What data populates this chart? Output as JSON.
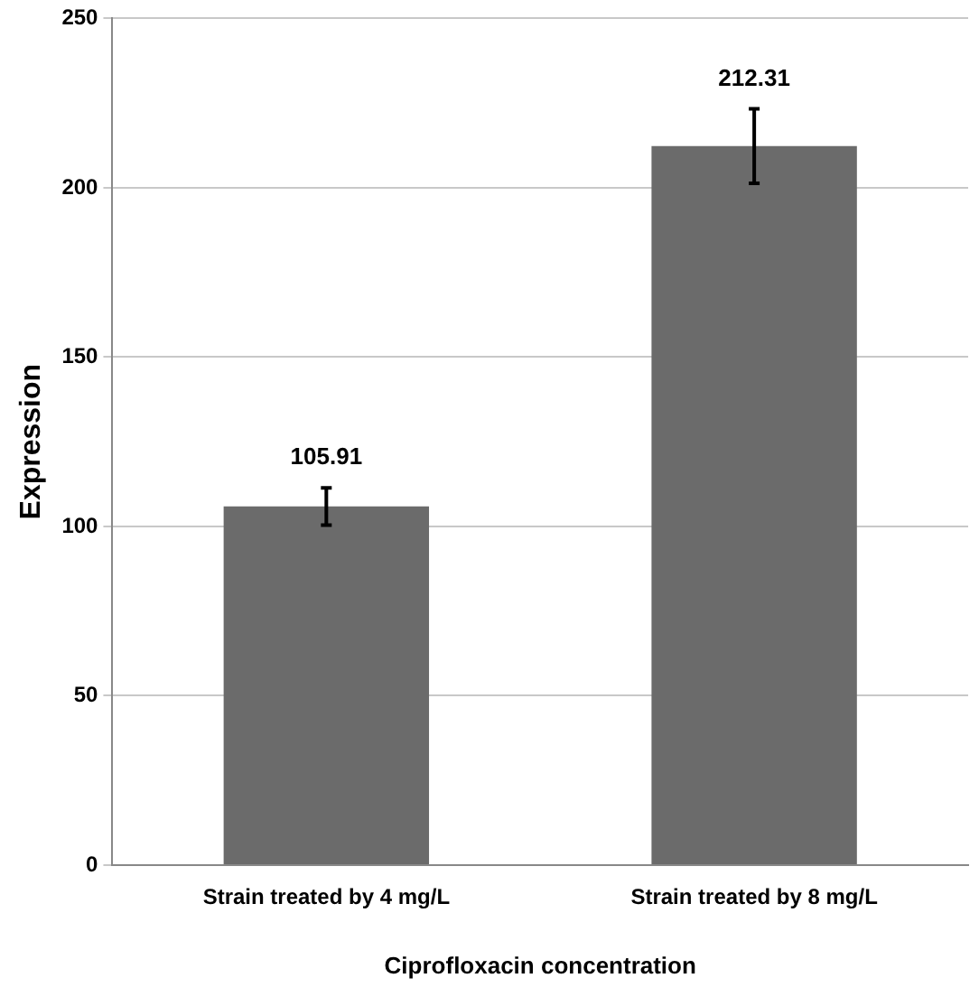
{
  "chart_data": {
    "type": "bar",
    "xlabel": "Ciprofloxacin concentration",
    "ylabel": "Expression",
    "categories": [
      "Strain treated by 4 mg/L",
      "Strain treated by 8 mg/L"
    ],
    "values": [
      105.91,
      212.31
    ],
    "color": "#6b6b6b",
    "errors": [
      5.5,
      11
    ],
    "ylim": [
      0,
      250
    ],
    "yticks": [
      0,
      50,
      100,
      150,
      200,
      250
    ],
    "grid": "y",
    "data_labels": true
  }
}
